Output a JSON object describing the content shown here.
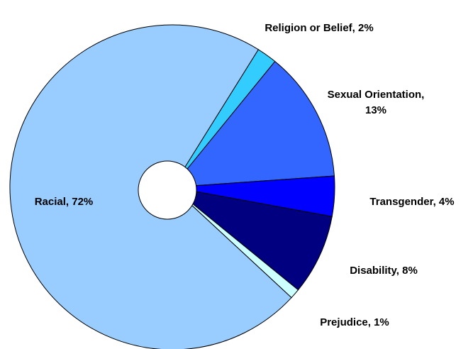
{
  "chart_data": {
    "type": "pie",
    "values": [
      2,
      13,
      4,
      8,
      1,
      72
    ],
    "value_labels": [
      "Religion or Belief, 2%",
      "Sexual Orientation, 13%",
      "Transgender, 4%",
      "Disability, 8%",
      "Prejudice, 1%",
      "Racial, 72%"
    ],
    "colors": [
      "#33ccff",
      "#3366ff",
      "#0000ff",
      "#000080",
      "#ccffff",
      "#99ccff"
    ]
  }
}
